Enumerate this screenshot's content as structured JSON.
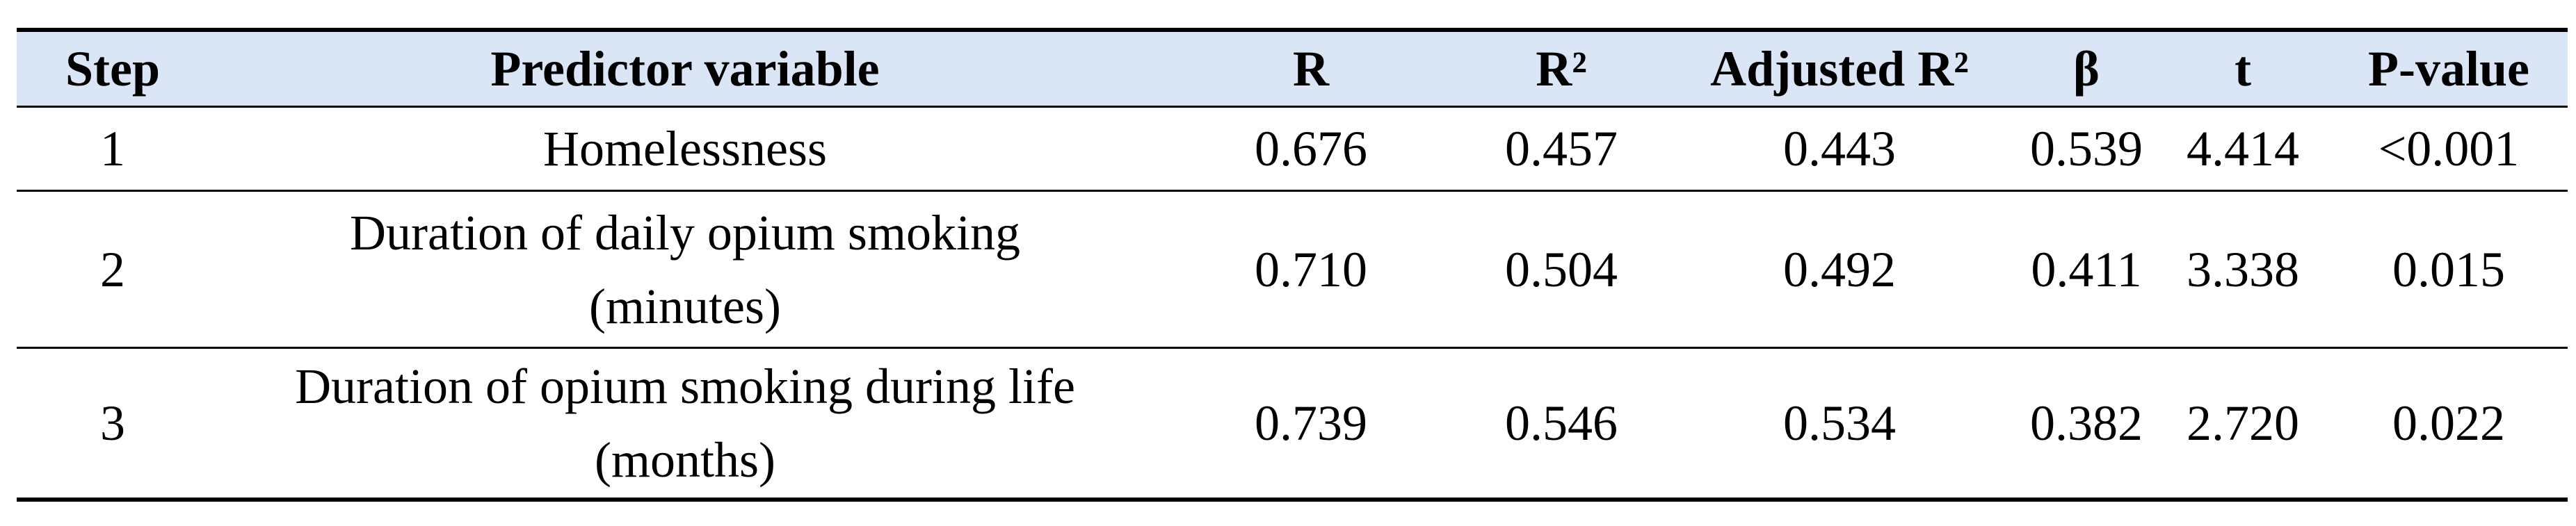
{
  "table": {
    "header": [
      "Step",
      "Predictor variable",
      "R",
      "R²",
      "Adjusted R²",
      "β",
      "t",
      "P-value"
    ],
    "rows": [
      [
        "1",
        "Homelessness",
        "0.676",
        "0.457",
        "0.443",
        "0.539",
        "4.414",
        "<0.001"
      ],
      [
        "2",
        "Duration of daily opium smoking (minutes)",
        "0.710",
        "0.504",
        "0.492",
        "0.411",
        "3.338",
        "0.015"
      ],
      [
        "3",
        "Duration of opium smoking during life (months)",
        "0.739",
        "0.546",
        "0.534",
        "0.382",
        "2.720",
        "0.022"
      ]
    ]
  }
}
